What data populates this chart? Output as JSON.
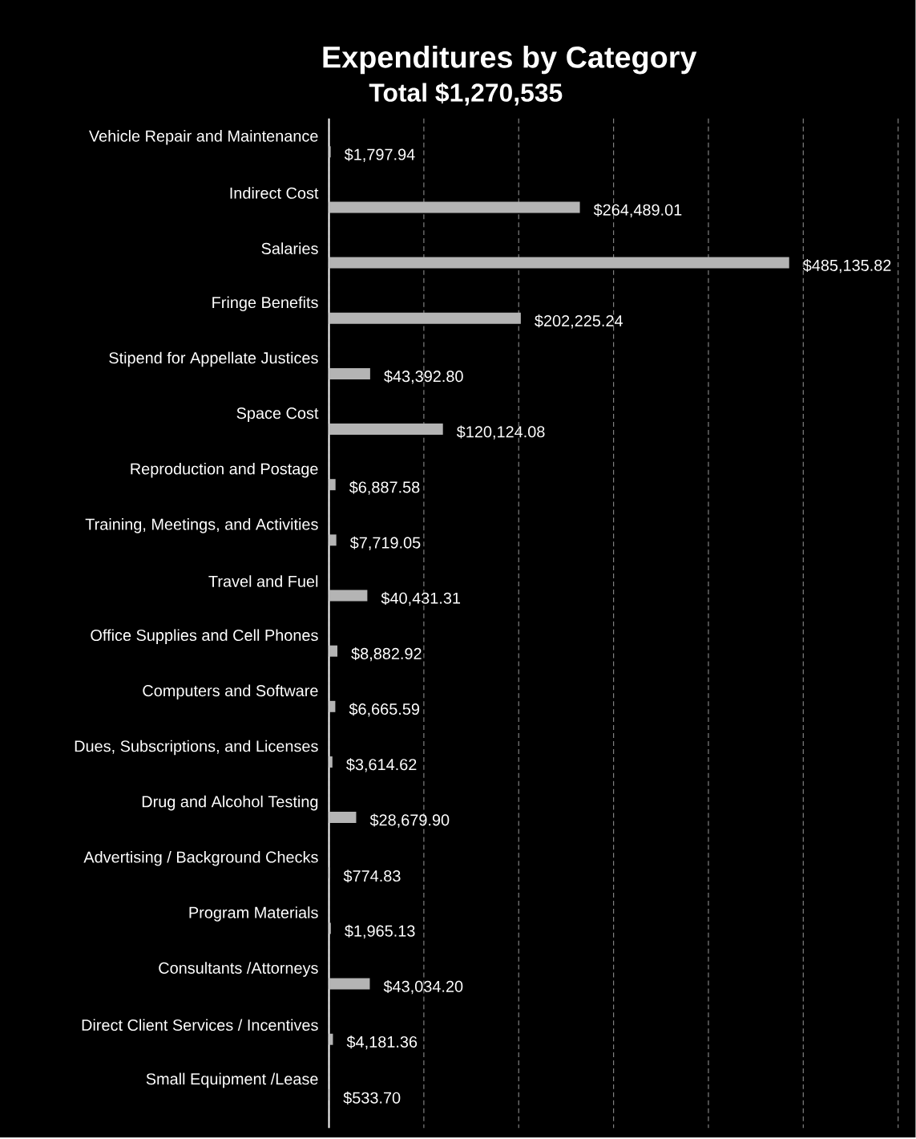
{
  "chart_data": {
    "type": "bar",
    "orientation": "horizontal",
    "title": "Expenditures by Category",
    "subtitle": "Total $1,270,535",
    "categories": [
      "Vehicle Repair and Maintenance",
      "Indirect Cost",
      "Salaries",
      "Fringe Benefits",
      "Stipend for Appellate Justices",
      "Space Cost",
      "Reproduction and Postage",
      "Training, Meetings, and Activities",
      "Travel and Fuel",
      "Office Supplies and Cell Phones",
      "Computers and Software",
      "Dues, Subscriptions, and Licenses",
      "Drug and Alcohol Testing",
      "Advertising / Background Checks",
      "Program Materials",
      "Consultants /Attorneys",
      "Direct Client Services / Incentives",
      "Small Equipment /Lease"
    ],
    "values": [
      1797.94,
      264489.01,
      485135.82,
      202225.24,
      43392.8,
      120124.08,
      6887.58,
      7719.05,
      40431.31,
      8882.92,
      6665.59,
      3614.62,
      28679.9,
      774.83,
      1965.13,
      43034.2,
      4181.36,
      533.7
    ],
    "value_labels": [
      "$1,797.94",
      "$264,489.01",
      "$485,135.82",
      "$202,225.24",
      "$43,392.80",
      "$120,124.08",
      "$6,887.58",
      "$7,719.05",
      "$40,431.31",
      "$8,882.92",
      "$6,665.59",
      "$3,614.62",
      "$28,679.90",
      "$774.83",
      "$1,965.13",
      "$43,034.20",
      "$4,181.36",
      "$533.70"
    ],
    "color": "#b4b4b4",
    "xlim": [
      0,
      600000
    ],
    "xticks": [
      {
        "value": 0,
        "label": null
      },
      {
        "value": 100000,
        "label": null
      },
      {
        "value": 200000,
        "label": null
      },
      {
        "value": 300000,
        "label": null
      },
      {
        "value": 400000,
        "label": null
      },
      {
        "value": 500000,
        "label": null
      },
      {
        "value": 600000,
        "label": null
      }
    ],
    "grid": "x"
  }
}
